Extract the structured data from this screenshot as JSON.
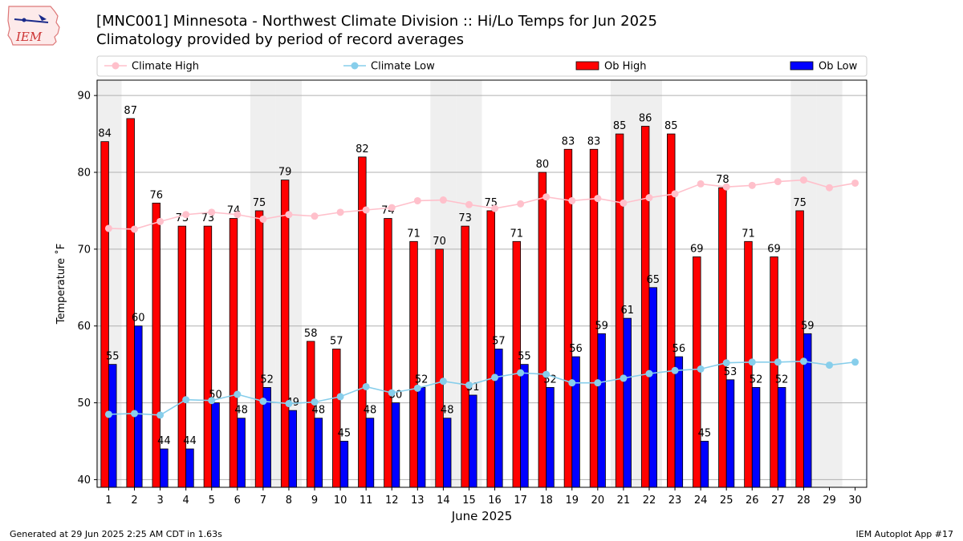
{
  "title": "[MNC001] Minnesota - Northwest Climate Division :: Hi/Lo Temps for Jun 2025",
  "subtitle": "Climatology provided by period of record averages",
  "logo_text": "IEM",
  "footer_left": "Generated at 29 Jun 2025 2:25 AM CDT in 1.63s",
  "footer_right": "IEM Autoplot App #17",
  "chart_data": {
    "type": "bar",
    "xlabel": "June 2025",
    "ylabel": "Temperature ˚F",
    "ylim": [
      39,
      92
    ],
    "yticks": [
      40,
      50,
      60,
      70,
      80,
      90
    ],
    "grid": true,
    "legend_position": "top",
    "shaded_days": [
      1,
      7,
      8,
      14,
      15,
      21,
      22,
      28,
      29
    ],
    "categories": [
      "1",
      "2",
      "3",
      "4",
      "5",
      "6",
      "7",
      "8",
      "9",
      "10",
      "11",
      "12",
      "13",
      "14",
      "15",
      "16",
      "17",
      "18",
      "19",
      "20",
      "21",
      "22",
      "23",
      "24",
      "25",
      "26",
      "27",
      "28",
      "29",
      "30"
    ],
    "series": [
      {
        "name": "Climate High",
        "kind": "line",
        "color": "#ffc0cb",
        "values": [
          72.7,
          72.6,
          73.6,
          74.5,
          74.8,
          74.5,
          73.9,
          74.5,
          74.3,
          74.8,
          75.1,
          75.4,
          76.3,
          76.4,
          75.8,
          75.3,
          75.9,
          76.8,
          76.3,
          76.6,
          76.0,
          76.7,
          77.2,
          78.5,
          78.1,
          78.3,
          78.8,
          79.0,
          78.0,
          78.6
        ]
      },
      {
        "name": "Climate Low",
        "kind": "line",
        "color": "#87ceeb",
        "values": [
          48.5,
          48.6,
          48.4,
          50.4,
          50.3,
          51.1,
          50.2,
          49.9,
          50.1,
          50.8,
          52.1,
          51.3,
          51.9,
          52.8,
          52.3,
          53.3,
          53.9,
          53.7,
          52.6,
          52.6,
          53.2,
          53.8,
          54.2,
          54.4,
          55.2,
          55.3,
          55.3,
          55.4,
          54.9,
          55.3
        ]
      },
      {
        "name": "Ob High",
        "kind": "bar",
        "color": "#ff0000",
        "values": [
          84,
          87,
          76,
          73,
          73,
          74,
          75,
          79,
          58,
          57,
          82,
          74,
          71,
          70,
          73,
          75,
          71,
          80,
          83,
          83,
          85,
          86,
          85,
          69,
          78,
          71,
          69,
          75,
          null,
          null
        ]
      },
      {
        "name": "Ob Low",
        "kind": "bar",
        "color": "#0000ff",
        "values": [
          55,
          60,
          44,
          44,
          50,
          48,
          52,
          49,
          48,
          45,
          48,
          50,
          52,
          48,
          51,
          57,
          55,
          52,
          56,
          59,
          61,
          65,
          56,
          45,
          53,
          52,
          52,
          59,
          null,
          null
        ]
      }
    ]
  }
}
